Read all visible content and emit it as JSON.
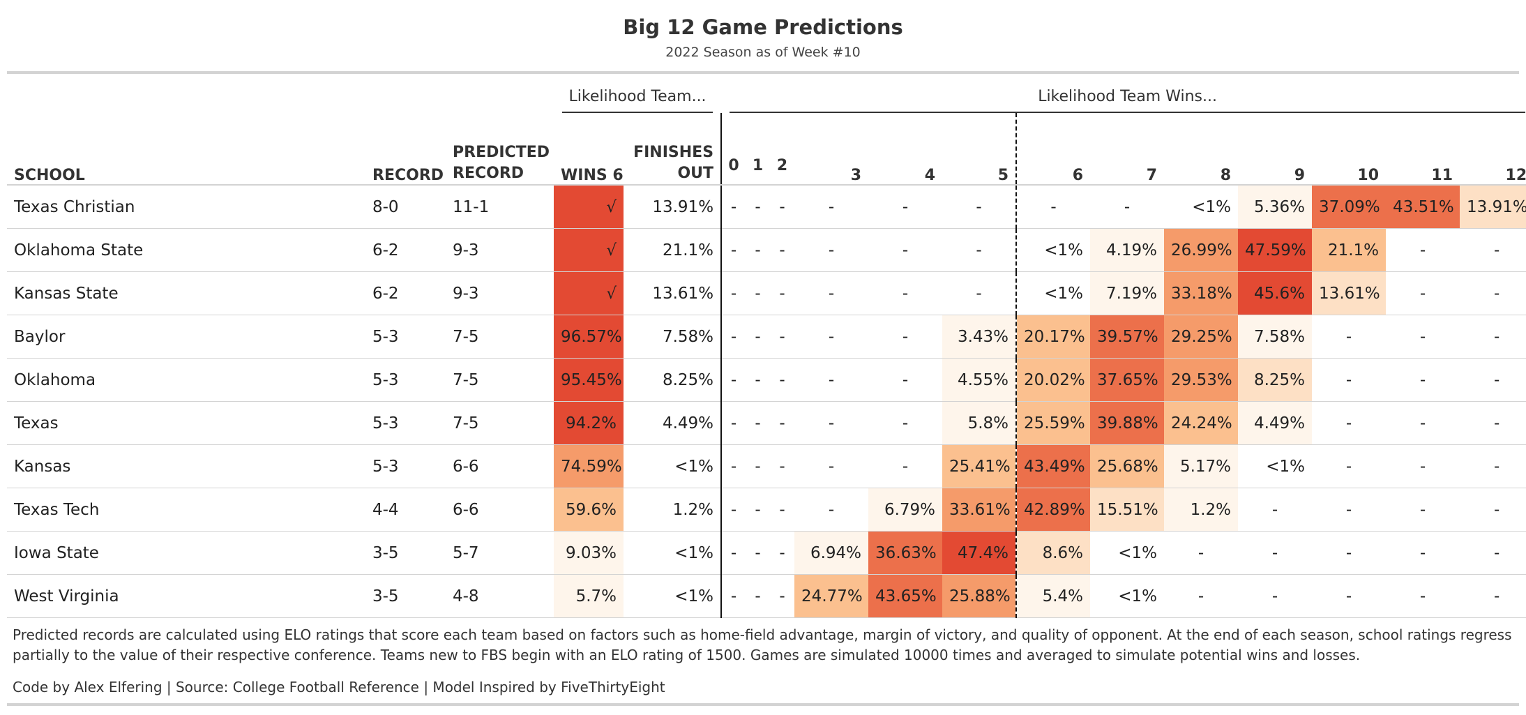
{
  "title": "Big 12 Game Predictions",
  "subtitle": "2022 Season as of Week #10",
  "spanners": {
    "likelihood_team": "Likelihood Team...",
    "likelihood_wins": "Likelihood Team Wins..."
  },
  "columns": {
    "school": "SCHOOL",
    "record": "RECORD",
    "predicted_line1": "PREDICTED",
    "predicted_line2": "RECORD",
    "wins6": "WINS 6",
    "finishes_line1": "FINISHES",
    "finishes_line2": "OUT",
    "win_counts": [
      "0",
      "1",
      "2",
      "3",
      "4",
      "5",
      "6",
      "7",
      "8",
      "9",
      "10",
      "11",
      "12"
    ]
  },
  "colors": {
    "scale": [
      "#fef5eb",
      "#fde0c5",
      "#fbc08f",
      "#f59b6a",
      "#ec704b",
      "#e34a33"
    ],
    "text": "#222222",
    "muted": "#aaaaaa",
    "rule": "#d3d3d3"
  },
  "rows": [
    {
      "school": "Texas Christian",
      "record": "8-0",
      "predicted": "11-1",
      "wins6": "√",
      "wins6_level": 1.0,
      "finishes_out": "13.91%",
      "dist": [
        "-",
        "-",
        "-",
        "-",
        "-",
        "-",
        "-",
        "-",
        "<1%",
        "5.36%",
        "37.09%",
        "43.51%",
        "13.91%"
      ],
      "levels": [
        0,
        0,
        0,
        0,
        0,
        0,
        0,
        0,
        0,
        0.06,
        0.78,
        0.9,
        0.3
      ]
    },
    {
      "school": "Oklahoma State",
      "record": "6-2",
      "predicted": "9-3",
      "wins6": "√",
      "wins6_level": 1.0,
      "finishes_out": "21.1%",
      "dist": [
        "-",
        "-",
        "-",
        "-",
        "-",
        "-",
        "<1%",
        "4.19%",
        "26.99%",
        "47.59%",
        "21.1%",
        "-",
        "-"
      ],
      "levels": [
        0,
        0,
        0,
        0,
        0,
        0,
        0,
        0.05,
        0.55,
        1.0,
        0.42,
        0,
        0
      ]
    },
    {
      "school": "Kansas State",
      "record": "6-2",
      "predicted": "9-3",
      "wins6": "√",
      "wins6_level": 1.0,
      "finishes_out": "13.61%",
      "dist": [
        "-",
        "-",
        "-",
        "-",
        "-",
        "-",
        "<1%",
        "7.19%",
        "33.18%",
        "45.6%",
        "13.61%",
        "-",
        "-"
      ],
      "levels": [
        0,
        0,
        0,
        0,
        0,
        0,
        0,
        0.1,
        0.68,
        0.95,
        0.28,
        0,
        0
      ]
    },
    {
      "school": "Baylor",
      "record": "5-3",
      "predicted": "7-5",
      "wins6": "96.57%",
      "wins6_level": 0.97,
      "finishes_out": "7.58%",
      "dist": [
        "-",
        "-",
        "-",
        "-",
        "-",
        "3.43%",
        "20.17%",
        "39.57%",
        "29.25%",
        "7.58%",
        "-",
        "-",
        "-"
      ],
      "levels": [
        0,
        0,
        0,
        0,
        0,
        0.04,
        0.4,
        0.82,
        0.6,
        0.12,
        0,
        0,
        0
      ]
    },
    {
      "school": "Oklahoma",
      "record": "5-3",
      "predicted": "7-5",
      "wins6": "95.45%",
      "wins6_level": 0.96,
      "finishes_out": "8.25%",
      "dist": [
        "-",
        "-",
        "-",
        "-",
        "-",
        "4.55%",
        "20.02%",
        "37.65%",
        "29.53%",
        "8.25%",
        "-",
        "-",
        "-"
      ],
      "levels": [
        0,
        0,
        0,
        0,
        0,
        0.05,
        0.4,
        0.78,
        0.6,
        0.14,
        0,
        0,
        0
      ]
    },
    {
      "school": "Texas",
      "record": "5-3",
      "predicted": "7-5",
      "wins6": "94.2%",
      "wins6_level": 0.95,
      "finishes_out": "4.49%",
      "dist": [
        "-",
        "-",
        "-",
        "-",
        "-",
        "5.8%",
        "25.59%",
        "39.88%",
        "24.24%",
        "4.49%",
        "-",
        "-",
        "-"
      ],
      "levels": [
        0,
        0,
        0,
        0,
        0,
        0.07,
        0.52,
        0.82,
        0.48,
        0.05,
        0,
        0,
        0
      ]
    },
    {
      "school": "Kansas",
      "record": "5-3",
      "predicted": "6-6",
      "wins6": "74.59%",
      "wins6_level": 0.62,
      "finishes_out": "<1%",
      "dist": [
        "-",
        "-",
        "-",
        "-",
        "-",
        "25.41%",
        "43.49%",
        "25.68%",
        "5.17%",
        "<1%",
        "-",
        "-",
        "-"
      ],
      "levels": [
        0,
        0,
        0,
        0,
        0,
        0.52,
        0.9,
        0.52,
        0.06,
        0,
        0,
        0,
        0
      ]
    },
    {
      "school": "Texas Tech",
      "record": "4-4",
      "predicted": "6-6",
      "wins6": "59.6%",
      "wins6_level": 0.48,
      "finishes_out": "1.2%",
      "dist": [
        "-",
        "-",
        "-",
        "-",
        "6.79%",
        "33.61%",
        "42.89%",
        "15.51%",
        "1.2%",
        "-",
        "-",
        "-",
        "-"
      ],
      "levels": [
        0,
        0,
        0,
        0,
        0.08,
        0.68,
        0.88,
        0.32,
        0.02,
        0,
        0,
        0,
        0
      ]
    },
    {
      "school": "Iowa State",
      "record": "3-5",
      "predicted": "5-7",
      "wins6": "9.03%",
      "wins6_level": 0.1,
      "finishes_out": "<1%",
      "dist": [
        "-",
        "-",
        "-",
        "6.94%",
        "36.63%",
        "47.4%",
        "8.6%",
        "<1%",
        "-",
        "-",
        "-",
        "-",
        "-"
      ],
      "levels": [
        0,
        0,
        0,
        0.08,
        0.76,
        1.0,
        0.14,
        0,
        0,
        0,
        0,
        0,
        0
      ]
    },
    {
      "school": "West Virginia",
      "record": "3-5",
      "predicted": "4-8",
      "wins6": "5.7%",
      "wins6_level": 0.06,
      "finishes_out": "<1%",
      "dist": [
        "-",
        "-",
        "-",
        "24.77%",
        "43.65%",
        "25.88%",
        "5.4%",
        "<1%",
        "-",
        "-",
        "-",
        "-",
        "-"
      ],
      "levels": [
        0,
        0,
        0,
        0.5,
        0.9,
        0.53,
        0.06,
        0,
        0,
        0,
        0,
        0,
        0
      ]
    }
  ],
  "footnote": "Predicted records are calculated using ELO ratings that score each team based on factors such as home-field advantage, margin of victory, and quality of opponent. At the end of each season, school ratings regress partially to the value of their respective conference. Teams new to FBS begin with an ELO rating of 1500. Games are simulated 10000 times and averaged to simulate potential wins and losses.",
  "credits": "Code by Alex Elfering | Source: College Football Reference | Model Inspired by FiveThirtyEight"
}
